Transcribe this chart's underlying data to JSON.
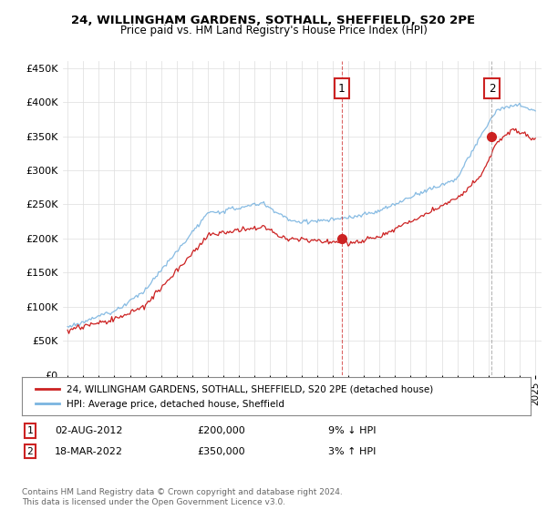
{
  "title_line1": "24, WILLINGHAM GARDENS, SOTHALL, SHEFFIELD, S20 2PE",
  "title_line2": "Price paid vs. HM Land Registry's House Price Index (HPI)",
  "legend_label1": "24, WILLINGHAM GARDENS, SOTHALL, SHEFFIELD, S20 2PE (detached house)",
  "legend_label2": "HPI: Average price, detached house, Sheffield",
  "annotation1_date": "02-AUG-2012",
  "annotation1_price": "£200,000",
  "annotation1_hpi": "9% ↓ HPI",
  "annotation2_date": "18-MAR-2022",
  "annotation2_price": "£350,000",
  "annotation2_hpi": "3% ↑ HPI",
  "footer": "Contains HM Land Registry data © Crown copyright and database right 2024.\nThis data is licensed under the Open Government Licence v3.0.",
  "bg_color": "#ffffff",
  "hpi_color": "#7ab4e0",
  "price_color": "#cc2222",
  "vline1_color": "#cc2222",
  "vline2_color": "#aaaaaa",
  "dot_color": "#cc2222",
  "ylim": [
    0,
    460000
  ],
  "yticks": [
    0,
    50000,
    100000,
    150000,
    200000,
    250000,
    300000,
    350000,
    400000,
    450000
  ],
  "sale1_year": 2012.58,
  "sale1_value": 200000,
  "sale2_year": 2022.21,
  "sale2_value": 350000,
  "num_box_color": "#cc2222"
}
